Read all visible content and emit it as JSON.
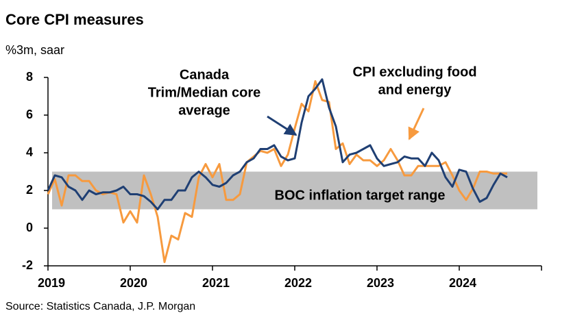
{
  "chart_data": {
    "type": "line",
    "title": "Core CPI measures",
    "subtitle": "%3m, saar",
    "source": "Source: Statistics Canada, J.P. Morgan",
    "xlim": [
      2019,
      2025
    ],
    "xticks": [
      2019,
      2020,
      2021,
      2022,
      2023,
      2024
    ],
    "ylim": [
      -2,
      8
    ],
    "yticks": [
      -2,
      0,
      2,
      4,
      6,
      8
    ],
    "band": {
      "from": 1,
      "to": 3,
      "color": "#c0c0c0",
      "label": "BOC inflation target range"
    },
    "x": [
      2019,
      2019.083,
      2019.167,
      2019.25,
      2019.333,
      2019.417,
      2019.5,
      2019.583,
      2019.667,
      2019.75,
      2019.833,
      2019.917,
      2020,
      2020.083,
      2020.167,
      2020.25,
      2020.333,
      2020.417,
      2020.5,
      2020.583,
      2020.667,
      2020.75,
      2020.833,
      2020.917,
      2021,
      2021.083,
      2021.167,
      2021.25,
      2021.333,
      2021.417,
      2021.5,
      2021.583,
      2021.667,
      2021.75,
      2021.833,
      2021.917,
      2022,
      2022.083,
      2022.167,
      2022.25,
      2022.333,
      2022.417,
      2022.5,
      2022.583,
      2022.667,
      2022.75,
      2022.833,
      2022.917,
      2023,
      2023.083,
      2023.167,
      2023.25,
      2023.333,
      2023.417,
      2023.5,
      2023.583,
      2023.667,
      2023.75,
      2023.833,
      2023.917,
      2024,
      2024.083,
      2024.167,
      2024.25,
      2024.333,
      2024.417,
      2024.5,
      2024.583
    ],
    "series": [
      {
        "name": "CPI excluding food and energy",
        "color": "#f79a3e",
        "values": [
          1.8,
          2.6,
          1.2,
          2.8,
          2.8,
          2.5,
          2.5,
          2.0,
          1.8,
          1.9,
          1.8,
          0.3,
          0.9,
          0.3,
          2.8,
          1.8,
          0.6,
          -1.8,
          -0.4,
          -0.6,
          0.8,
          0.6,
          2.7,
          3.4,
          2.7,
          3.4,
          1.5,
          1.5,
          1.8,
          3.5,
          3.8,
          4.1,
          4.0,
          4.2,
          3.3,
          3.9,
          5.3,
          6.6,
          6.2,
          7.8,
          6.8,
          6.7,
          4.2,
          4.5,
          3.4,
          3.9,
          3.6,
          3.6,
          3.3,
          3.6,
          4.2,
          3.6,
          2.8,
          2.8,
          3.3,
          3.3,
          3.3,
          3.3,
          3.5,
          2.8,
          2.0,
          1.5,
          2.1,
          3.0,
          3.0,
          2.9,
          2.9,
          2.9
        ]
      },
      {
        "name": "Canada Trim/Median core average",
        "color": "#1f3f73",
        "values": [
          2.0,
          2.8,
          2.7,
          2.2,
          2.0,
          1.5,
          2.0,
          1.8,
          1.9,
          1.9,
          2.0,
          2.2,
          1.8,
          1.8,
          1.7,
          1.4,
          1.0,
          1.5,
          1.5,
          2.0,
          2.0,
          2.7,
          3.0,
          2.7,
          2.3,
          2.2,
          2.4,
          2.8,
          3.0,
          3.5,
          3.7,
          4.2,
          4.2,
          4.4,
          3.8,
          3.6,
          3.7,
          5.6,
          7.0,
          7.4,
          7.9,
          6.4,
          5.4,
          3.5,
          3.9,
          4.0,
          4.2,
          4.4,
          3.7,
          3.3,
          3.4,
          3.5,
          3.8,
          3.7,
          3.7,
          3.3,
          4.0,
          3.6,
          2.7,
          2.2,
          3.1,
          3.0,
          2.1,
          1.4,
          1.6,
          2.3,
          2.9,
          2.7
        ]
      }
    ],
    "annotations": [
      {
        "lines": [
          "Canada",
          "Trim/Median core",
          "average"
        ],
        "color": "#1f3f73"
      },
      {
        "lines": [
          "CPI excluding food",
          "and energy"
        ],
        "color": "#f79a3e"
      }
    ]
  }
}
